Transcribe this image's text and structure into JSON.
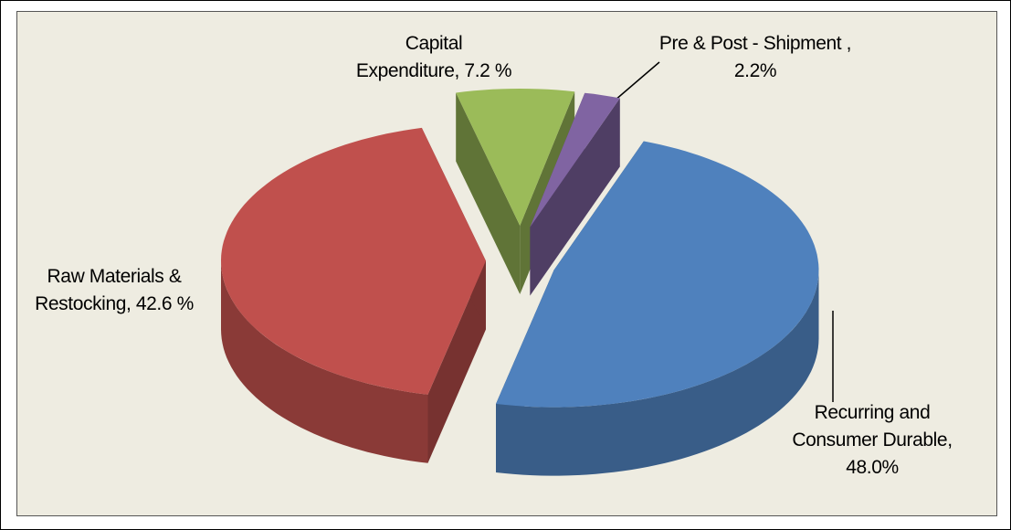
{
  "chart_data": {
    "type": "pie3d",
    "values": [
      7.2,
      2.2,
      48.0,
      42.6
    ],
    "value_labels": [
      "Capital Expenditure, 7.2 %",
      "Pre & Post - Shipment , 2.2%",
      "Recurring and Consumer Durable, 48.0%",
      "Raw Materials & Restocking, 42.6 %"
    ],
    "colors": [
      "#9bbb59",
      "#8064a2",
      "#4f81bd",
      "#c0504d"
    ],
    "exploded": true
  }
}
